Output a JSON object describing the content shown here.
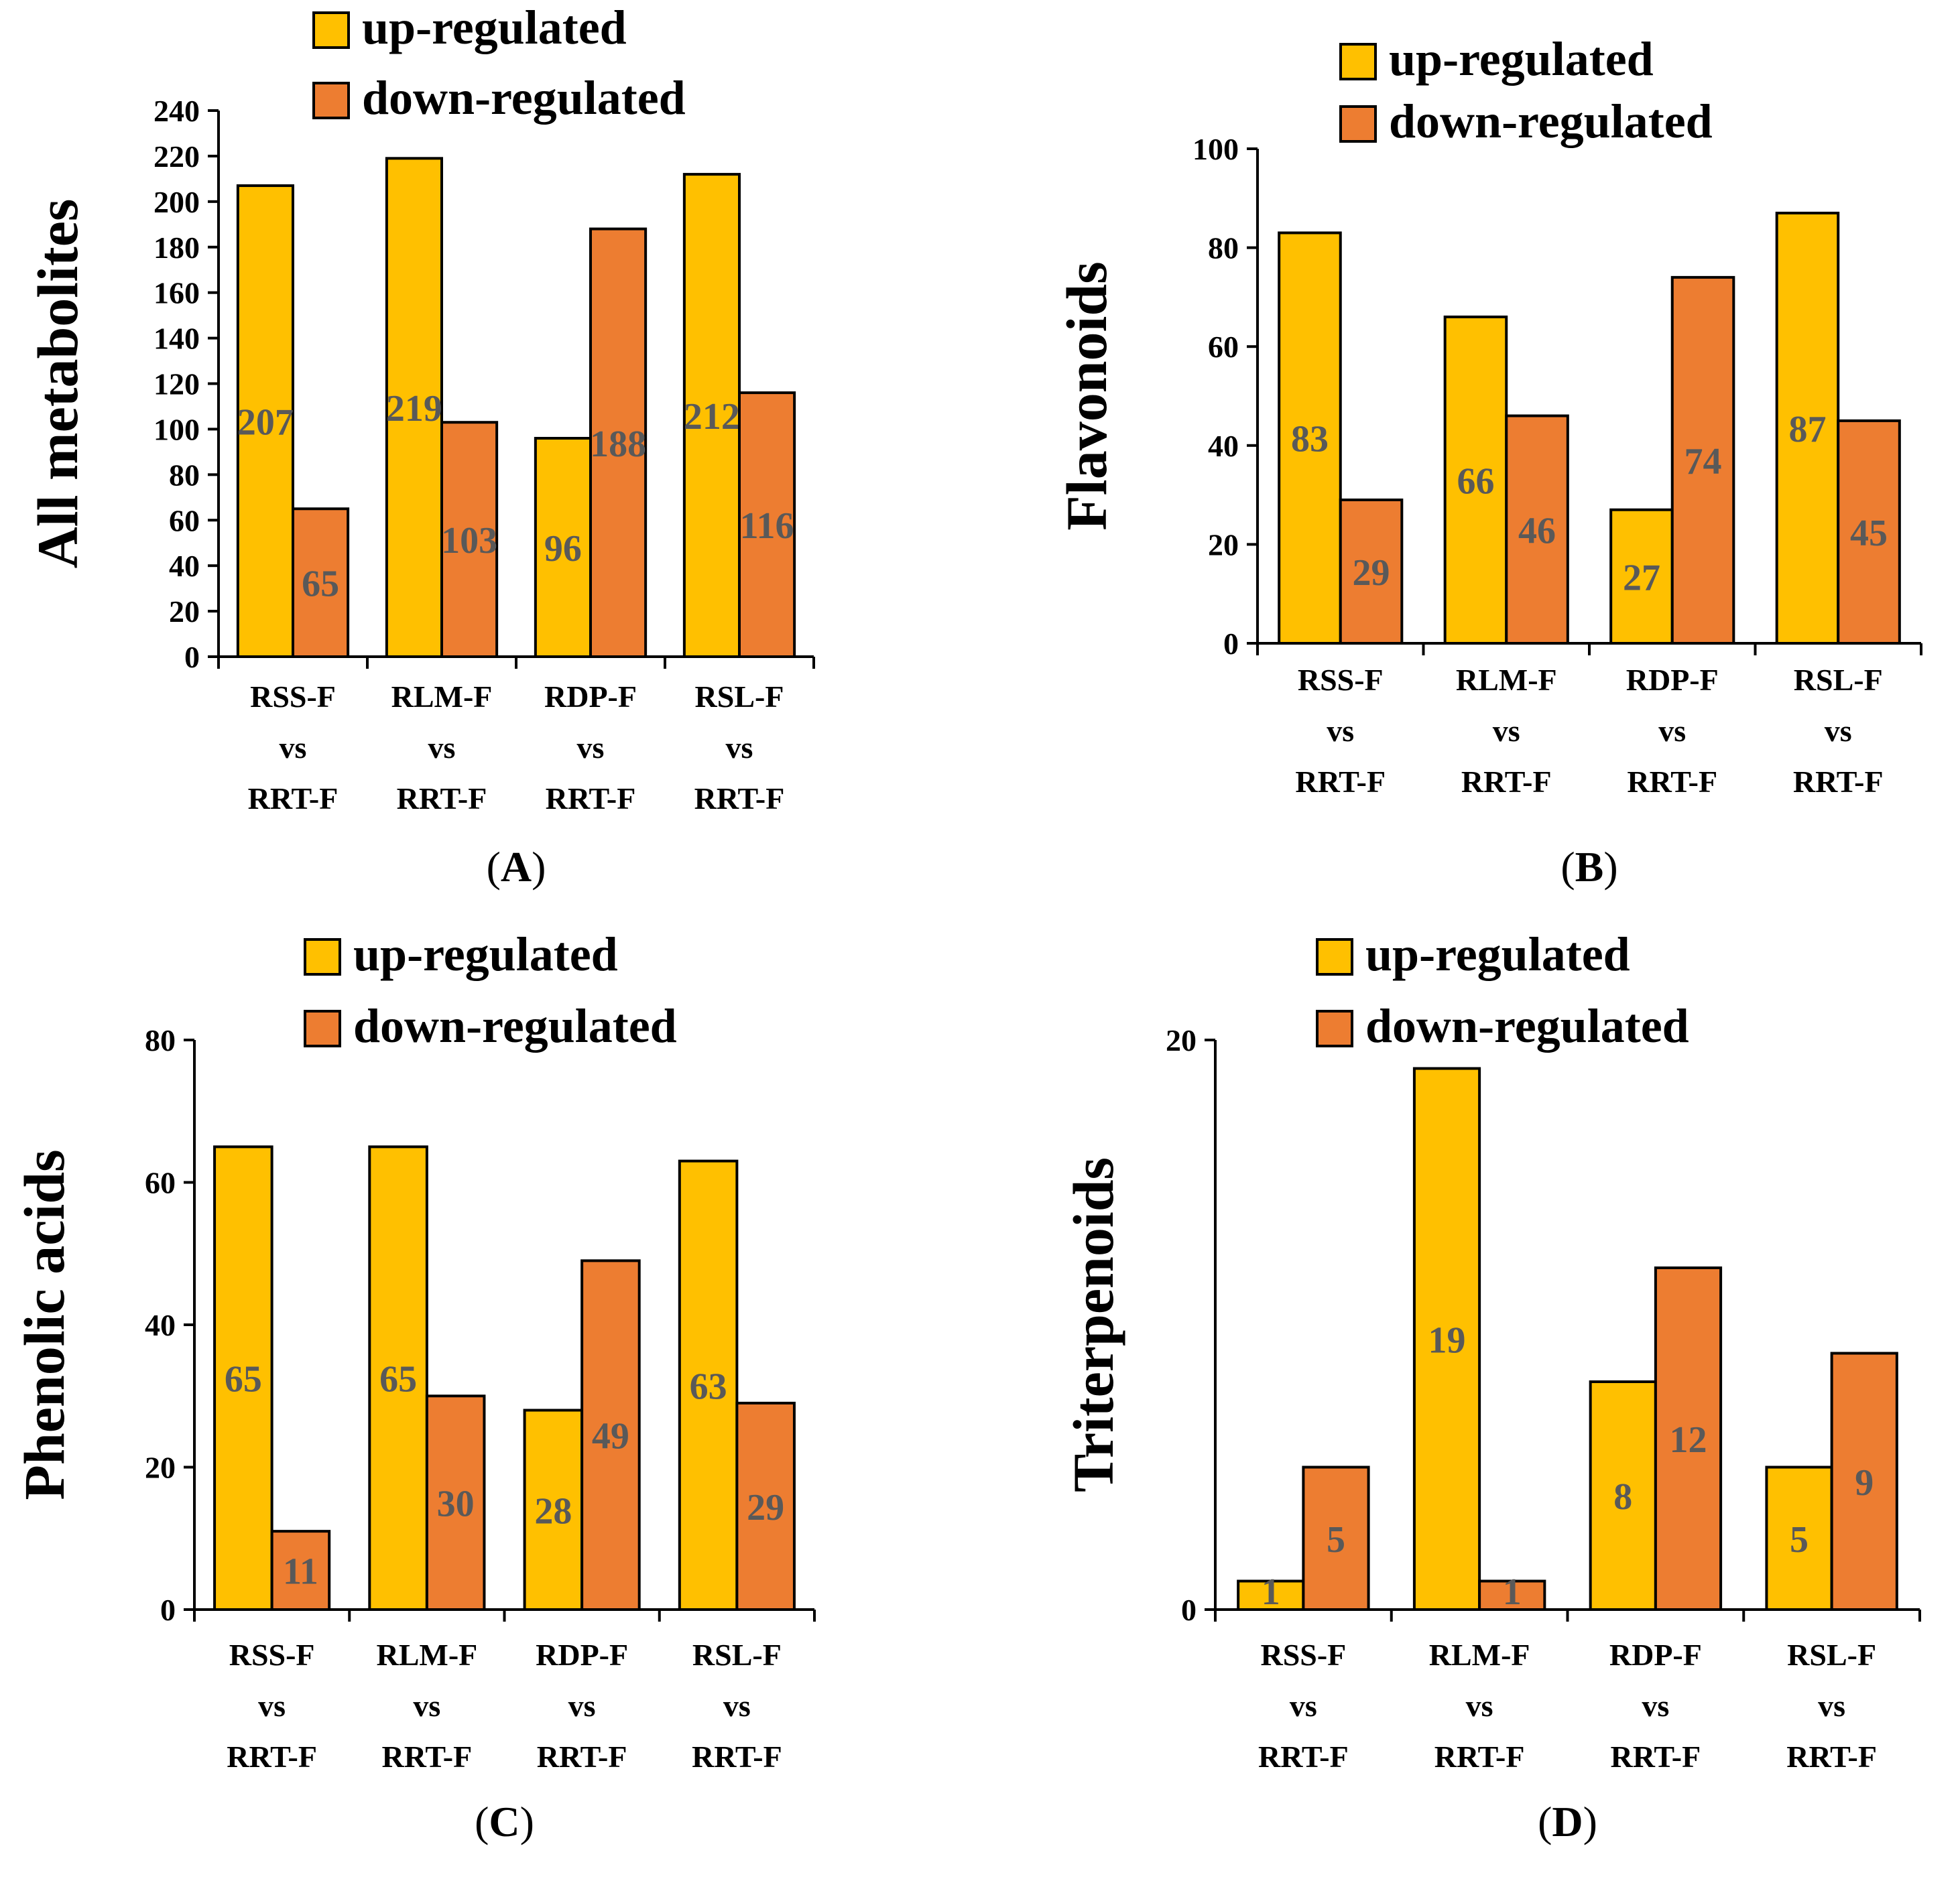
{
  "colors": {
    "up": "#FFC000",
    "down": "#ED7D31",
    "edge": "#000000",
    "data_label": "#595959"
  },
  "chart_data": [
    {
      "id": "A",
      "type": "bar",
      "panel_label": "A",
      "ylabel": "All metabolites",
      "ylim": [
        0,
        240
      ],
      "yticks": [
        0,
        20,
        40,
        60,
        80,
        100,
        120,
        140,
        160,
        180,
        200,
        220,
        240
      ],
      "categories": [
        [
          "RSS-F",
          "vs",
          "RRT-F"
        ],
        [
          "RLM-F",
          "vs",
          "RRT-F"
        ],
        [
          "RDP-F",
          "vs",
          "RRT-F"
        ],
        [
          "RSL-F",
          "vs",
          "RRT-F"
        ]
      ],
      "series": [
        {
          "name": "up-regulated",
          "values": [
            207,
            219,
            96,
            212
          ]
        },
        {
          "name": "down-regulated",
          "values": [
            65,
            103,
            188,
            116
          ]
        }
      ],
      "data_labels": {
        "up-regulated": [
          "207",
          "219",
          "96",
          "212"
        ],
        "down-regulated": [
          "65",
          "103",
          "188",
          "116"
        ]
      },
      "legend": [
        "up-regulated",
        "down-regulated"
      ],
      "legend_position": "top-right"
    },
    {
      "id": "B",
      "type": "bar",
      "panel_label": "B",
      "ylabel": "Flavonoids",
      "ylim": [
        0,
        100
      ],
      "yticks": [
        0,
        20,
        40,
        60,
        80,
        100
      ],
      "categories": [
        [
          "RSS-F",
          "vs",
          "RRT-F"
        ],
        [
          "RLM-F",
          "vs",
          "RRT-F"
        ],
        [
          "RDP-F",
          "vs",
          "RRT-F"
        ],
        [
          "RSL-F",
          "vs",
          "RRT-F"
        ]
      ],
      "series": [
        {
          "name": "up-regulated",
          "values": [
            83,
            66,
            27,
            87
          ]
        },
        {
          "name": "down-regulated",
          "values": [
            29,
            46,
            74,
            45
          ]
        }
      ],
      "data_labels": {
        "up-regulated": [
          "83",
          "66",
          "27",
          "87"
        ],
        "down-regulated": [
          "29",
          "46",
          "74",
          "45"
        ]
      },
      "legend": [
        "up-regulated",
        "down-regulated"
      ],
      "legend_position": "top-right"
    },
    {
      "id": "C",
      "type": "bar",
      "panel_label": "C",
      "ylabel": "Phenolic acids",
      "ylim": [
        0,
        80
      ],
      "yticks": [
        0,
        20,
        40,
        60,
        80
      ],
      "categories": [
        [
          "RSS-F",
          "vs",
          "RRT-F"
        ],
        [
          "RLM-F",
          "vs",
          "RRT-F"
        ],
        [
          "RDP-F",
          "vs",
          "RRT-F"
        ],
        [
          "RSL-F",
          "vs",
          "RRT-F"
        ]
      ],
      "series": [
        {
          "name": "up-regulated",
          "values": [
            65,
            65,
            28,
            63
          ]
        },
        {
          "name": "down-regulated",
          "values": [
            11,
            30,
            49,
            29
          ]
        }
      ],
      "data_labels": {
        "up-regulated": [
          "65",
          "65",
          "28",
          "63"
        ],
        "down-regulated": [
          "11",
          "30",
          "49",
          "29"
        ]
      },
      "legend": [
        "up-regulated",
        "down-regulated"
      ],
      "legend_position": "top-right"
    },
    {
      "id": "D",
      "type": "bar",
      "panel_label": "D",
      "ylabel": "Triterpenoids",
      "ylim": [
        0,
        20
      ],
      "yticks": [
        0,
        20
      ],
      "categories": [
        [
          "RSS-F",
          "vs",
          "RRT-F"
        ],
        [
          "RLM-F",
          "vs",
          "RRT-F"
        ],
        [
          "RDP-F",
          "vs",
          "RRT-F"
        ],
        [
          "RSL-F",
          "vs",
          "RRT-F"
        ]
      ],
      "series": [
        {
          "name": "up-regulated",
          "values": [
            1,
            19,
            8,
            5
          ]
        },
        {
          "name": "down-regulated",
          "values": [
            5,
            1,
            12,
            9
          ]
        }
      ],
      "data_labels": {
        "up-regulated": [
          "1",
          "19",
          "8",
          "5"
        ],
        "down-regulated": [
          "5",
          "1",
          "12",
          "9"
        ]
      },
      "legend": [
        "up-regulated",
        "down-regulated"
      ],
      "legend_position": "top-right"
    }
  ]
}
